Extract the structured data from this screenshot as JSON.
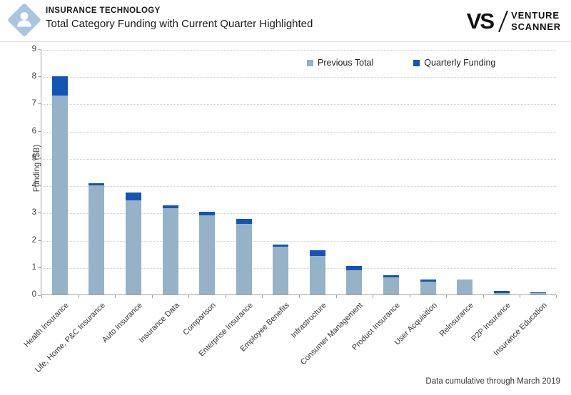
{
  "header": {
    "kicker": "INSURANCE TECHNOLOGY",
    "title": "Total Category Funding with Current Quarter Highlighted",
    "logo": {
      "monogram": "VS",
      "name_line1": "VENTURE",
      "name_line2": "SCANNER"
    },
    "icon": "person-diamond-icon",
    "icon_color": "#a9c5e0"
  },
  "footer": {
    "note": "Data cumulative through March 2019"
  },
  "colors": {
    "previous_total": "#95b2c6",
    "quarterly_funding": "#1355b4",
    "axis": "#a3a3a3",
    "gridline": "#cfcfcf"
  },
  "chart_data": {
    "type": "bar",
    "stacked": true,
    "title": "Total Category Funding with Current Quarter Highlighted",
    "xlabel": "",
    "ylabel": "Funding ($B)",
    "ylim": [
      0,
      9
    ],
    "ytick_step": 1,
    "grid": "horizontal dotted gridlines at each integer",
    "legend_position": "top-inside",
    "categories": [
      "Health Insurance",
      "Life, Home, P&C Insurance",
      "Auto Insurance",
      "Insurance Data",
      "Comparison",
      "Enterprise Insurance",
      "Employee Benefits",
      "Infrastructure",
      "Consumer Management",
      "Product Insurance",
      "User Acquisition",
      "Reinsurance",
      "P2P Insurance",
      "Insurance Education"
    ],
    "series": [
      {
        "name": "Previous Total",
        "color": "#95b2c6",
        "values": [
          7.3,
          4.0,
          3.45,
          3.17,
          2.91,
          2.58,
          1.75,
          1.41,
          0.89,
          0.64,
          0.47,
          0.54,
          0.05,
          0.04
        ]
      },
      {
        "name": "Quarterly Funding",
        "color": "#1355b4",
        "values": [
          0.7,
          0.08,
          0.29,
          0.11,
          0.13,
          0.19,
          0.08,
          0.2,
          0.17,
          0.08,
          0.08,
          0.0,
          0.07,
          0.01
        ]
      }
    ],
    "stacked_totals": [
      8.0,
      4.08,
      3.74,
      3.28,
      3.04,
      2.77,
      1.83,
      1.61,
      1.06,
      0.72,
      0.55,
      0.54,
      0.12,
      0.05
    ]
  }
}
